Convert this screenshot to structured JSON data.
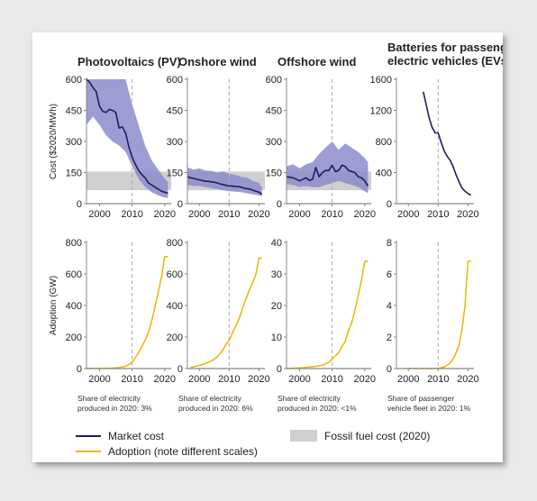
{
  "colors": {
    "market": "#1d1f5c",
    "band": "#8c8bcb",
    "adoption": "#f0b400",
    "fossil": "#cfcfcf",
    "axis": "#888888"
  },
  "labels": {
    "cost_ylabel": "Cost ($2020/MWh)",
    "adoption_ylabel": "Adoption (GW)"
  },
  "legend": {
    "market": "Market cost",
    "adoption": "Adoption (note different scales)",
    "fossil": "Fossil fuel cost (2020)"
  },
  "chart_data": [
    {
      "id": "pv-cost",
      "type": "line",
      "title": [
        "Photovoltaics (PV)"
      ],
      "xlim": [
        1996,
        2022
      ],
      "xticks": [
        2000,
        2010,
        2020
      ],
      "ylim": [
        0,
        600
      ],
      "yticks": [
        0,
        150,
        300,
        450,
        600
      ],
      "ylabel": "Cost ($2020/MWh)",
      "fossil_band": [
        65,
        155
      ],
      "series": [
        {
          "x": [
            1996,
            1997,
            1998,
            1999,
            2000,
            2001,
            2002,
            2003,
            2004,
            2005,
            2006,
            2007,
            2008,
            2009,
            2010,
            2011,
            2012,
            2013,
            2014,
            2015,
            2016,
            2017,
            2018,
            2019,
            2020,
            2021
          ],
          "y": [
            600,
            585,
            560,
            540,
            470,
            445,
            440,
            455,
            450,
            440,
            365,
            370,
            340,
            275,
            225,
            190,
            160,
            140,
            125,
            100,
            90,
            80,
            70,
            60,
            55,
            50
          ]
        }
      ],
      "band": {
        "x": [
          1996,
          1998,
          2000,
          2002,
          2004,
          2006,
          2008,
          2010,
          2012,
          2014,
          2016,
          2018,
          2020,
          2021
        ],
        "low": [
          380,
          420,
          380,
          330,
          300,
          280,
          250,
          180,
          120,
          80,
          55,
          40,
          30,
          28
        ],
        "high": [
          600,
          600,
          600,
          600,
          600,
          600,
          600,
          480,
          380,
          280,
          210,
          165,
          120,
          105
        ]
      }
    },
    {
      "id": "onshore-cost",
      "type": "line",
      "title": [
        "Onshore wind"
      ],
      "xlim": [
        1996,
        2022
      ],
      "xticks": [
        2000,
        2010,
        2020
      ],
      "ylim": [
        0,
        600
      ],
      "yticks": [
        0,
        150,
        300,
        450,
        600
      ],
      "fossil_band": [
        65,
        155
      ],
      "series": [
        {
          "x": [
            1996,
            1997,
            1998,
            1999,
            2000,
            2001,
            2002,
            2003,
            2004,
            2005,
            2006,
            2007,
            2008,
            2009,
            2010,
            2011,
            2012,
            2013,
            2014,
            2015,
            2016,
            2017,
            2018,
            2019,
            2020,
            2021
          ],
          "y": [
            130,
            125,
            122,
            118,
            115,
            112,
            108,
            108,
            105,
            103,
            100,
            95,
            92,
            88,
            85,
            85,
            83,
            82,
            80,
            75,
            72,
            70,
            65,
            60,
            55,
            45
          ]
        }
      ],
      "band": {
        "x": [
          1996,
          1998,
          2000,
          2002,
          2004,
          2006,
          2008,
          2010,
          2012,
          2014,
          2016,
          2018,
          2020,
          2021
        ],
        "low": [
          90,
          85,
          85,
          80,
          75,
          70,
          65,
          60,
          58,
          55,
          50,
          45,
          40,
          35
        ],
        "high": [
          175,
          165,
          170,
          160,
          158,
          150,
          155,
          145,
          140,
          130,
          125,
          110,
          100,
          80
        ]
      }
    },
    {
      "id": "offshore-cost",
      "type": "line",
      "title": [
        "Offshore wind"
      ],
      "xlim": [
        1996,
        2022
      ],
      "xticks": [
        2000,
        2010,
        2020
      ],
      "ylim": [
        0,
        600
      ],
      "yticks": [
        0,
        150,
        300,
        450,
        600
      ],
      "fossil_band": [
        65,
        155
      ],
      "series": [
        {
          "x": [
            1996,
            1998,
            2000,
            2002,
            2003,
            2004,
            2005,
            2006,
            2007,
            2008,
            2009,
            2010,
            2011,
            2012,
            2013,
            2014,
            2015,
            2016,
            2017,
            2018,
            2019,
            2020,
            2021
          ],
          "y": [
            130,
            125,
            110,
            125,
            112,
            118,
            175,
            130,
            150,
            160,
            160,
            185,
            155,
            160,
            185,
            180,
            160,
            155,
            150,
            130,
            125,
            110,
            85
          ]
        }
      ],
      "band": {
        "x": [
          1996,
          1998,
          2000,
          2002,
          2004,
          2006,
          2008,
          2010,
          2012,
          2014,
          2016,
          2018,
          2020,
          2021
        ],
        "low": [
          95,
          90,
          80,
          85,
          80,
          80,
          90,
          100,
          110,
          100,
          90,
          80,
          60,
          50
        ],
        "high": [
          180,
          190,
          170,
          190,
          200,
          240,
          270,
          300,
          260,
          290,
          270,
          250,
          220,
          200
        ]
      }
    },
    {
      "id": "ev-cost",
      "type": "line",
      "title": [
        "Batteries for passenger",
        "electric vehicles (EVs)"
      ],
      "xlim": [
        1996,
        2022
      ],
      "xticks": [
        2000,
        2010,
        2020
      ],
      "ylim": [
        0,
        1600
      ],
      "yticks": [
        0,
        400,
        800,
        1200,
        1600
      ],
      "series": [
        {
          "x": [
            2005,
            2006,
            2007,
            2008,
            2009,
            2010,
            2011,
            2012,
            2013,
            2014,
            2015,
            2016,
            2017,
            2018,
            2019,
            2020,
            2021
          ],
          "y": [
            1440,
            1270,
            1100,
            980,
            910,
            910,
            790,
            680,
            610,
            560,
            480,
            370,
            280,
            200,
            160,
            130,
            110
          ]
        }
      ]
    },
    {
      "id": "pv-adoption",
      "type": "line",
      "xlim": [
        1996,
        2022
      ],
      "xticks": [
        2000,
        2010,
        2020
      ],
      "ylim": [
        0,
        800
      ],
      "yticks": [
        0,
        200,
        400,
        600,
        800
      ],
      "ylabel": "Adoption (GW)",
      "share": [
        "Share of electricity",
        "produced in 2020: 3%"
      ],
      "series": [
        {
          "x": [
            1996,
            1998,
            2000,
            2002,
            2004,
            2006,
            2007,
            2008,
            2009,
            2010,
            2011,
            2012,
            2013,
            2014,
            2015,
            2016,
            2017,
            2018,
            2019,
            2020,
            2021
          ],
          "y": [
            0,
            0,
            1,
            2,
            3,
            6,
            10,
            15,
            25,
            40,
            70,
            100,
            140,
            180,
            230,
            300,
            390,
            480,
            580,
            710,
            710
          ]
        }
      ]
    },
    {
      "id": "onshore-adoption",
      "type": "line",
      "xlim": [
        1996,
        2022
      ],
      "xticks": [
        2000,
        2010,
        2020
      ],
      "ylim": [
        0,
        800
      ],
      "yticks": [
        0,
        200,
        400,
        600,
        800
      ],
      "share": [
        "Share of electricity",
        "produced in 2020: 6%"
      ],
      "series": [
        {
          "x": [
            1997,
            1998,
            1999,
            2000,
            2001,
            2002,
            2003,
            2004,
            2005,
            2006,
            2007,
            2008,
            2009,
            2010,
            2011,
            2012,
            2013,
            2014,
            2015,
            2016,
            2017,
            2018,
            2019,
            2020,
            2021
          ],
          "y": [
            8,
            10,
            15,
            20,
            25,
            32,
            40,
            48,
            60,
            75,
            95,
            120,
            155,
            180,
            220,
            260,
            300,
            350,
            410,
            460,
            510,
            550,
            600,
            700,
            700
          ]
        }
      ]
    },
    {
      "id": "offshore-adoption",
      "type": "line",
      "xlim": [
        1996,
        2022
      ],
      "xticks": [
        2000,
        2010,
        2020
      ],
      "ylim": [
        0,
        40
      ],
      "yticks": [
        0,
        10,
        20,
        30,
        40
      ],
      "share": [
        "Share of electricity",
        "produced in 2020: <1%"
      ],
      "series": [
        {
          "x": [
            1996,
            1998,
            2000,
            2002,
            2004,
            2005,
            2006,
            2007,
            2008,
            2009,
            2010,
            2011,
            2012,
            2013,
            2014,
            2015,
            2016,
            2017,
            2018,
            2019,
            2020,
            2021
          ],
          "y": [
            0,
            0.1,
            0.2,
            0.3,
            0.6,
            0.7,
            0.9,
            1.1,
            1.5,
            2,
            3,
            4,
            5,
            7,
            8.5,
            12,
            14.5,
            18.5,
            23,
            28,
            34,
            34
          ]
        }
      ]
    },
    {
      "id": "ev-adoption",
      "type": "line",
      "xlim": [
        1996,
        2022
      ],
      "xticks": [
        2000,
        2010,
        2020
      ],
      "ylim": [
        0,
        8
      ],
      "yticks": [
        0,
        2,
        4,
        6,
        8
      ],
      "share": [
        "Share of passenger",
        "vehicle fleet in 2020: 1%"
      ],
      "series": [
        {
          "x": [
            2000,
            2002,
            2004,
            2006,
            2008,
            2010,
            2011,
            2012,
            2013,
            2014,
            2015,
            2016,
            2017,
            2018,
            2019,
            2020,
            2021
          ],
          "y": [
            0,
            0,
            0,
            0,
            0,
            0.02,
            0.05,
            0.1,
            0.2,
            0.35,
            0.6,
            1,
            1.5,
            2.5,
            4,
            6.8,
            6.8
          ]
        }
      ]
    }
  ]
}
